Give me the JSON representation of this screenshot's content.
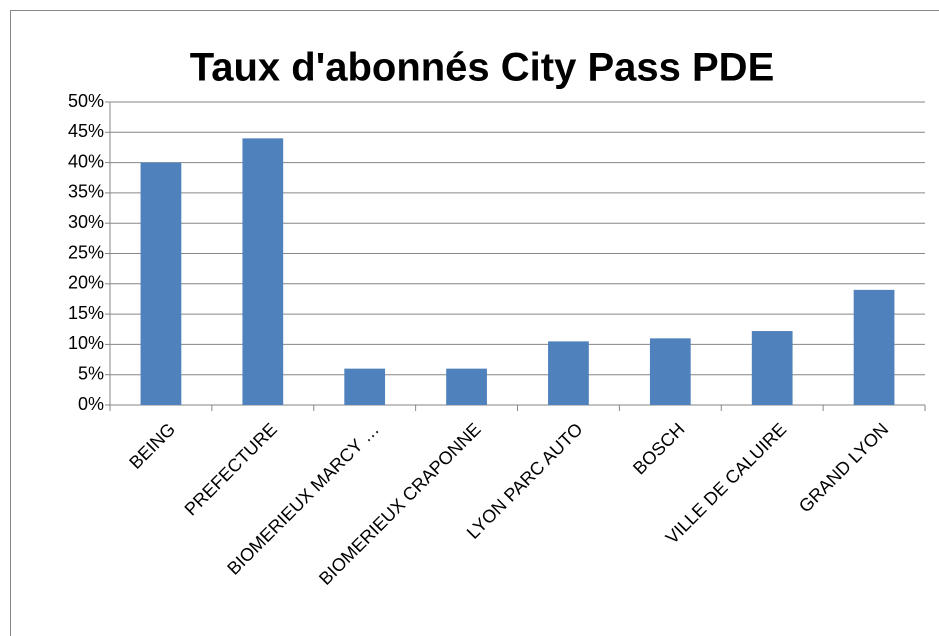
{
  "chart_data": {
    "type": "bar",
    "title": "Taux d'abonnés City Pass PDE",
    "categories": [
      "BEING",
      "PREFECTURE",
      "BIOMERIEUX MARCY …",
      "BIOMERIEUX CRAPONNE",
      "LYON PARC AUTO",
      "BOSCH",
      "VILLE DE CALUIRE",
      "GRAND LYON"
    ],
    "values": [
      0.4,
      0.44,
      0.06,
      0.06,
      0.105,
      0.11,
      0.122,
      0.19
    ],
    "color": "#4f81bd",
    "ylim": [
      0,
      0.5
    ],
    "yticks": [
      {
        "value": 0,
        "label": "0%"
      },
      {
        "value": 0.05,
        "label": "5%"
      },
      {
        "value": 0.1,
        "label": "10%"
      },
      {
        "value": 0.15,
        "label": "15%"
      },
      {
        "value": 0.2,
        "label": "20%"
      },
      {
        "value": 0.25,
        "label": "25%"
      },
      {
        "value": 0.3,
        "label": "30%"
      },
      {
        "value": 0.35,
        "label": "35%"
      },
      {
        "value": 0.4,
        "label": "40%"
      },
      {
        "value": 0.45,
        "label": "45%"
      },
      {
        "value": 0.5,
        "label": "50%"
      }
    ],
    "grid": true
  }
}
